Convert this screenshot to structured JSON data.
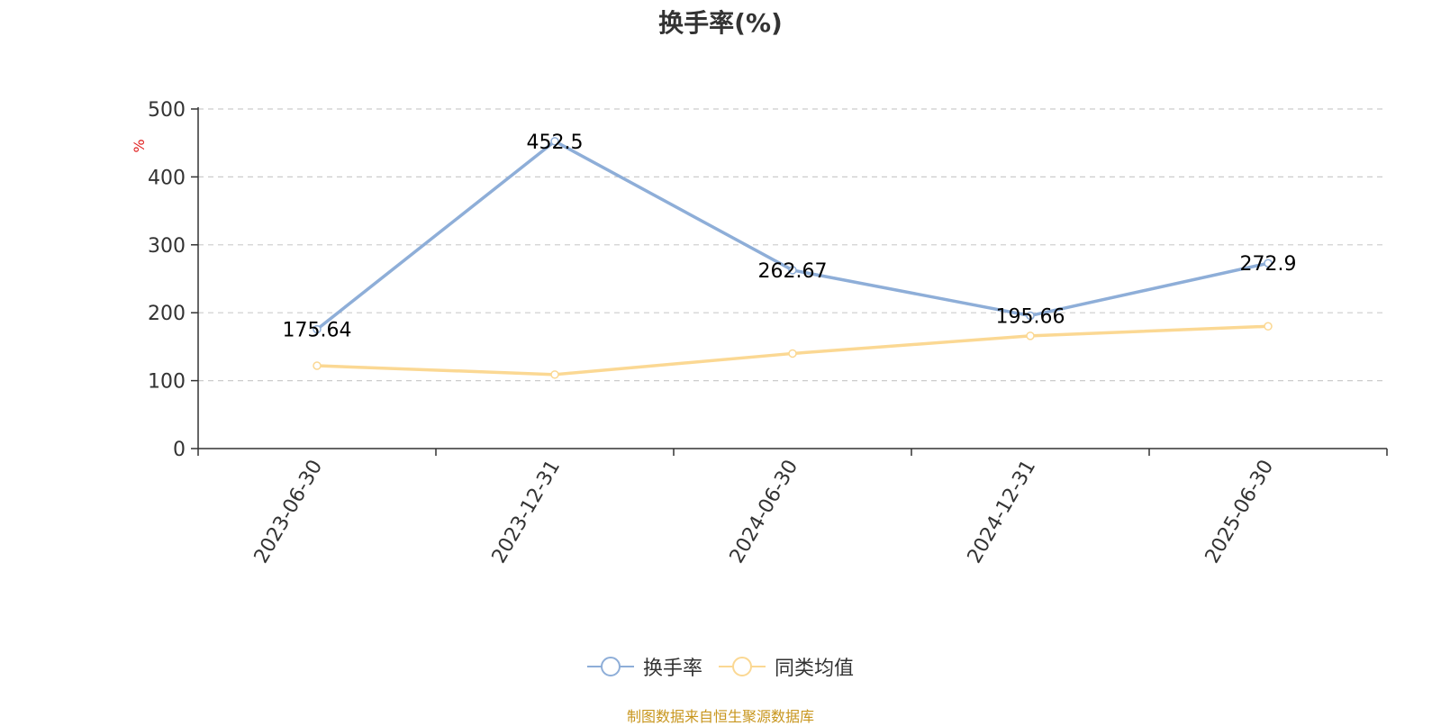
{
  "chart_data": {
    "type": "line",
    "title": "换手率(%)",
    "ylabel": "%",
    "xlabel": "",
    "categories": [
      "2023-06-30",
      "2023-12-31",
      "2024-06-30",
      "2024-12-31",
      "2025-06-30"
    ],
    "ylim": [
      0,
      500
    ],
    "yticks": [
      0,
      100,
      200,
      300,
      400,
      500
    ],
    "grid": true,
    "legend_position": "bottom",
    "series": [
      {
        "name": "换手率",
        "values": [
          175.64,
          452.5,
          262.67,
          195.66,
          272.9
        ],
        "color": "#8eaed8",
        "show_labels": true
      },
      {
        "name": "同类均值",
        "values": [
          122,
          109,
          140,
          166,
          180
        ],
        "color": "#fbd893",
        "show_labels": false
      }
    ]
  },
  "footer": {
    "source": "制图数据来自恒生聚源数据库"
  }
}
